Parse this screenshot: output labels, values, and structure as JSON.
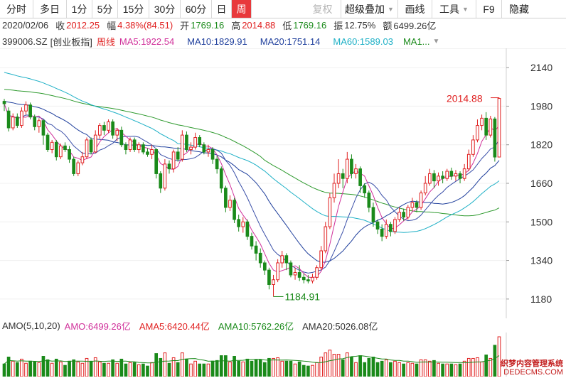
{
  "toolbar": {
    "items": [
      "分时",
      "多日",
      "1分",
      "5分",
      "15分",
      "30分",
      "60分",
      "日",
      "周",
      "复权",
      "超级叠加",
      "画线",
      "工具",
      "F9",
      "隐藏"
    ]
  },
  "info": {
    "date": "2020/02/06",
    "close_label": "收",
    "close": "2012.25",
    "change_label": "幅",
    "change": "4.38%(84.51)",
    "open_label": "开",
    "open": "1769.16",
    "high_label": "高",
    "high": "2014.88",
    "low_label": "低",
    "low": "1769.16",
    "amplitude_label": "振",
    "amplitude": "12.75%",
    "amount_label": "额",
    "amount": "6499.26亿"
  },
  "ma_legend": {
    "symbol": "399006.SZ",
    "name": "[创业板指]",
    "period": "周线",
    "ma5": "MA5:1922.54",
    "ma10": "MA10:1829.91",
    "ma20": "MA20:1751.14",
    "ma60": "MA60:1589.03",
    "ma_more": "MA1..."
  },
  "annotations": {
    "high_label": "2014.88",
    "low_label": "1184.91"
  },
  "amo_legend": {
    "title": "AMO(5,10,20)",
    "amo": "AMO:6499.26亿",
    "ama5": "AMA5:6420.44亿",
    "ama10": "AMA10:5762.26亿",
    "ama20": "AMA20:5026.08亿"
  },
  "watermark": {
    "line1": "织梦内容管理系统",
    "line2": "DEDECMS.COM"
  },
  "colors": {
    "up": "#e02020",
    "down": "#1a8a1a",
    "ma5": "#d0309a",
    "ma10": "#1f3f9c",
    "ma20": "#1f3f9c",
    "ma60": "#1eb0c6",
    "ma_long": "#2e9a2e",
    "active_tab": "#e8393c"
  },
  "chart_data": {
    "type": "candlestick",
    "period": "weekly",
    "ylim": [
      1100,
      2220
    ],
    "yticks": [
      2140,
      1980,
      1820,
      1660,
      1500,
      1340,
      1180
    ],
    "candles": [
      [
        2000,
        1990,
        2010,
        1960
      ],
      [
        1960,
        1890,
        1975,
        1875
      ],
      [
        1890,
        1935,
        1950,
        1880
      ],
      [
        1935,
        1900,
        1950,
        1890
      ],
      [
        1900,
        1960,
        1975,
        1890
      ],
      [
        1960,
        1985,
        2000,
        1945
      ],
      [
        1985,
        1935,
        1995,
        1925
      ],
      [
        1935,
        1895,
        1945,
        1880
      ],
      [
        1895,
        1920,
        1930,
        1870
      ],
      [
        1920,
        1860,
        1925,
        1820
      ],
      [
        1860,
        1800,
        1870,
        1790
      ],
      [
        1800,
        1830,
        1840,
        1785
      ],
      [
        1830,
        1770,
        1840,
        1755
      ],
      [
        1770,
        1815,
        1825,
        1760
      ],
      [
        1815,
        1800,
        1830,
        1790
      ],
      [
        1800,
        1760,
        1815,
        1745
      ],
      [
        1760,
        1700,
        1770,
        1690
      ],
      [
        1700,
        1745,
        1755,
        1690
      ],
      [
        1745,
        1770,
        1790,
        1735
      ],
      [
        1770,
        1840,
        1850,
        1760
      ],
      [
        1840,
        1790,
        1850,
        1780
      ],
      [
        1790,
        1860,
        1880,
        1785
      ],
      [
        1860,
        1900,
        1910,
        1845
      ],
      [
        1900,
        1880,
        1915,
        1860
      ],
      [
        1880,
        1915,
        1925,
        1870
      ],
      [
        1915,
        1860,
        1925,
        1845
      ],
      [
        1860,
        1880,
        1890,
        1835
      ],
      [
        1880,
        1820,
        1895,
        1810
      ],
      [
        1820,
        1800,
        1830,
        1780
      ],
      [
        1800,
        1840,
        1850,
        1790
      ],
      [
        1840,
        1800,
        1850,
        1790
      ],
      [
        1800,
        1820,
        1830,
        1785
      ],
      [
        1820,
        1790,
        1830,
        1780
      ],
      [
        1790,
        1780,
        1805,
        1770
      ],
      [
        1780,
        1800,
        1820,
        1760
      ],
      [
        1800,
        1700,
        1805,
        1680
      ],
      [
        1700,
        1640,
        1710,
        1620
      ],
      [
        1640,
        1740,
        1760,
        1630
      ],
      [
        1740,
        1720,
        1755,
        1700
      ],
      [
        1720,
        1790,
        1800,
        1705
      ],
      [
        1790,
        1760,
        1810,
        1750
      ],
      [
        1760,
        1860,
        1880,
        1750
      ],
      [
        1860,
        1800,
        1875,
        1790
      ],
      [
        1800,
        1810,
        1830,
        1780
      ],
      [
        1810,
        1850,
        1870,
        1800
      ],
      [
        1850,
        1820,
        1860,
        1810
      ],
      [
        1820,
        1790,
        1830,
        1780
      ],
      [
        1790,
        1800,
        1820,
        1770
      ],
      [
        1800,
        1760,
        1810,
        1740
      ],
      [
        1760,
        1720,
        1775,
        1700
      ],
      [
        1720,
        1640,
        1730,
        1620
      ],
      [
        1640,
        1560,
        1650,
        1540
      ],
      [
        1560,
        1590,
        1610,
        1545
      ],
      [
        1590,
        1510,
        1600,
        1495
      ],
      [
        1510,
        1480,
        1530,
        1460
      ],
      [
        1480,
        1500,
        1520,
        1455
      ],
      [
        1500,
        1440,
        1510,
        1425
      ],
      [
        1440,
        1400,
        1455,
        1385
      ],
      [
        1400,
        1370,
        1420,
        1340
      ],
      [
        1370,
        1330,
        1390,
        1310
      ],
      [
        1330,
        1300,
        1340,
        1280
      ],
      [
        1300,
        1240,
        1310,
        1220
      ],
      [
        1240,
        1260,
        1280,
        1190
      ],
      [
        1260,
        1330,
        1345,
        1250
      ],
      [
        1330,
        1360,
        1380,
        1310
      ],
      [
        1360,
        1330,
        1370,
        1300
      ],
      [
        1330,
        1280,
        1340,
        1270
      ],
      [
        1280,
        1290,
        1310,
        1260
      ],
      [
        1290,
        1270,
        1320,
        1255
      ],
      [
        1270,
        1260,
        1285,
        1245
      ],
      [
        1260,
        1255,
        1280,
        1245
      ],
      [
        1255,
        1270,
        1285,
        1245
      ],
      [
        1270,
        1310,
        1320,
        1260
      ],
      [
        1310,
        1380,
        1400,
        1300
      ],
      [
        1380,
        1480,
        1500,
        1370
      ],
      [
        1480,
        1600,
        1620,
        1470
      ],
      [
        1600,
        1660,
        1700,
        1580
      ],
      [
        1660,
        1700,
        1760,
        1640
      ],
      [
        1700,
        1680,
        1720,
        1640
      ],
      [
        1680,
        1760,
        1790,
        1660
      ],
      [
        1760,
        1700,
        1780,
        1680
      ],
      [
        1700,
        1720,
        1740,
        1680
      ],
      [
        1720,
        1650,
        1730,
        1620
      ],
      [
        1650,
        1620,
        1660,
        1600
      ],
      [
        1620,
        1560,
        1630,
        1540
      ],
      [
        1560,
        1500,
        1580,
        1480
      ],
      [
        1500,
        1470,
        1510,
        1450
      ],
      [
        1470,
        1440,
        1490,
        1420
      ],
      [
        1440,
        1490,
        1510,
        1430
      ],
      [
        1490,
        1460,
        1500,
        1440
      ],
      [
        1460,
        1510,
        1520,
        1450
      ],
      [
        1510,
        1540,
        1560,
        1500
      ],
      [
        1540,
        1520,
        1555,
        1505
      ],
      [
        1520,
        1560,
        1570,
        1510
      ],
      [
        1560,
        1580,
        1600,
        1545
      ],
      [
        1580,
        1560,
        1590,
        1540
      ],
      [
        1560,
        1620,
        1630,
        1550
      ],
      [
        1620,
        1660,
        1690,
        1610
      ],
      [
        1660,
        1700,
        1720,
        1650
      ],
      [
        1700,
        1670,
        1715,
        1640
      ],
      [
        1670,
        1690,
        1705,
        1650
      ],
      [
        1690,
        1680,
        1710,
        1660
      ],
      [
        1680,
        1710,
        1720,
        1670
      ],
      [
        1710,
        1690,
        1725,
        1675
      ],
      [
        1690,
        1700,
        1715,
        1670
      ],
      [
        1700,
        1680,
        1710,
        1660
      ],
      [
        1680,
        1720,
        1740,
        1670
      ],
      [
        1720,
        1780,
        1800,
        1710
      ],
      [
        1780,
        1840,
        1860,
        1770
      ],
      [
        1840,
        1900,
        1925,
        1830
      ],
      [
        1900,
        1930,
        1945,
        1880
      ],
      [
        1930,
        1860,
        1955,
        1840
      ],
      [
        1860,
        1927,
        1940,
        1850
      ],
      [
        1927,
        1769,
        1935,
        1750
      ],
      [
        1769,
        2012,
        2015,
        1769
      ]
    ]
  }
}
